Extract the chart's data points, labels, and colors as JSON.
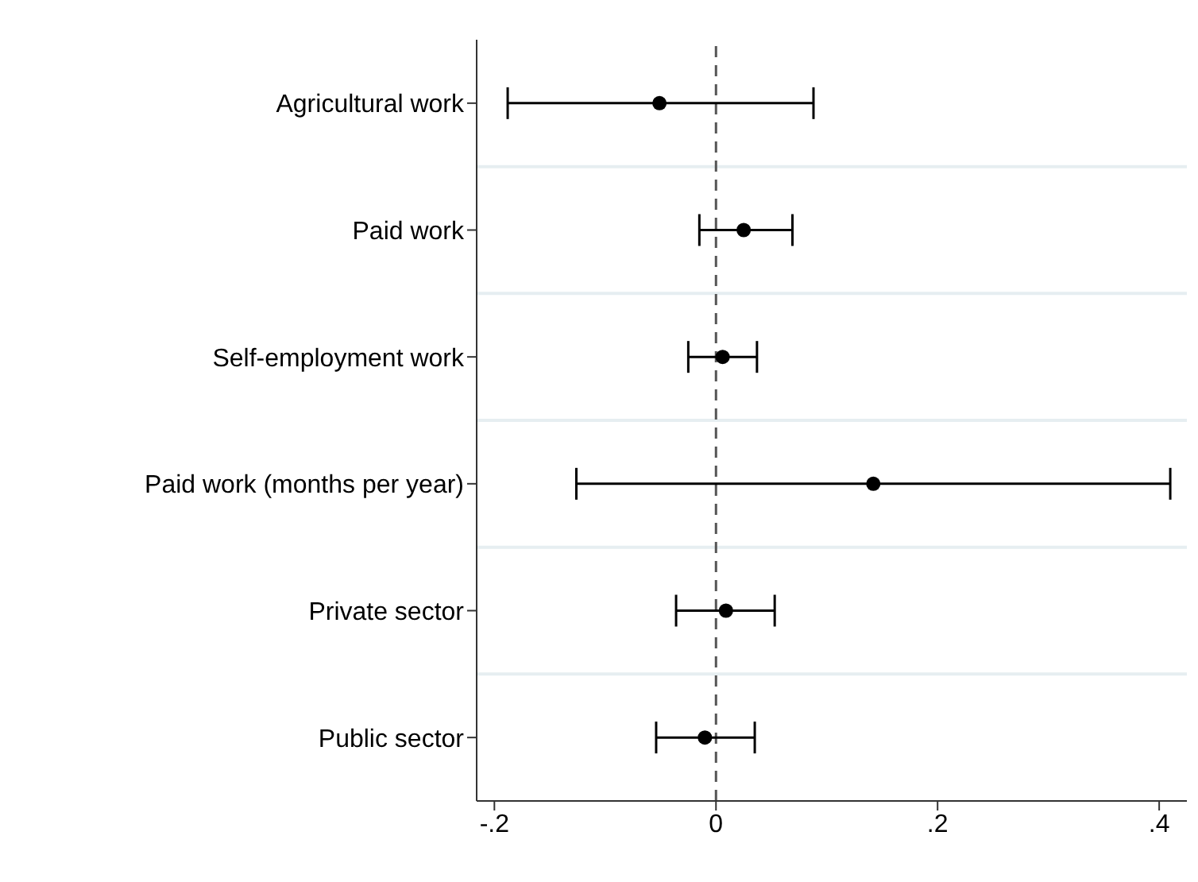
{
  "chart_data": {
    "type": "scatter",
    "orientation": "horizontal",
    "categories": [
      "Agricultural work",
      "Paid work",
      "Self-employment work",
      "Paid work (months per year)",
      "Private sector",
      "Public sector"
    ],
    "values": [
      -0.051,
      0.025,
      0.006,
      0.142,
      0.009,
      -0.01
    ],
    "errors": [
      [
        -0.188,
        0.088
      ],
      [
        -0.015,
        0.069
      ],
      [
        -0.025,
        0.037
      ],
      [
        -0.126,
        0.41
      ],
      [
        -0.036,
        0.053
      ],
      [
        -0.054,
        0.035
      ]
    ],
    "color": "#000000",
    "marker": "circle",
    "xlim": [
      -0.216,
      0.425
    ],
    "xticks": [
      {
        "value": -0.2,
        "label": "-.2"
      },
      0,
      {
        "value": 0.2,
        "label": ".2"
      },
      {
        "value": 0.4,
        "label": ".4"
      }
    ],
    "ref_lines": [
      {
        "axis": "x",
        "value": 0,
        "color": "#555555",
        "line_style": "dashed"
      }
    ],
    "grid": "y"
  }
}
